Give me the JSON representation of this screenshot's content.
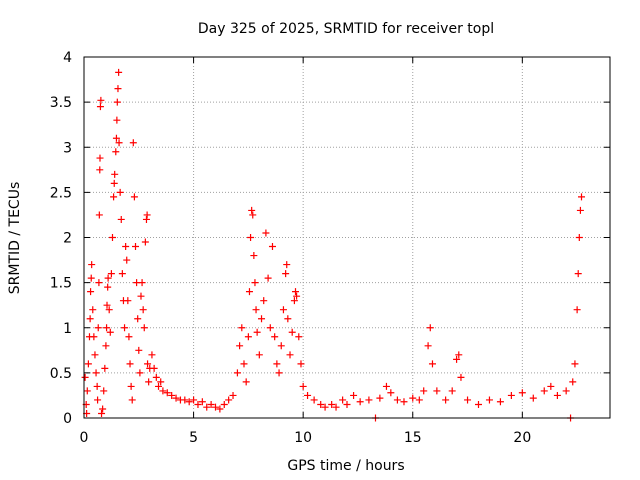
{
  "chart_data": {
    "type": "scatter",
    "title": "Day 325 of 2025, SRMTID for receiver topl",
    "xlabel": "GPS time / hours",
    "ylabel": "SRMTID / TECUs",
    "xlim": [
      0,
      24
    ],
    "ylim": [
      0,
      4
    ],
    "xticks": [
      0,
      5,
      10,
      15,
      20
    ],
    "xtick_labels": [
      "0",
      "5",
      "10",
      "15",
      "20"
    ],
    "yticks": [
      0,
      0.5,
      1,
      1.5,
      2,
      2.5,
      3,
      3.5,
      4
    ],
    "ytick_labels": [
      "0",
      "0.5",
      "1",
      "1.5",
      "2",
      "2.5",
      "3",
      "3.5",
      "4"
    ],
    "grid": true,
    "legend": "none",
    "marker": "+",
    "series": [
      {
        "name": "SRMTID",
        "color": "#ff0000",
        "points": [
          [
            0.05,
            0.45
          ],
          [
            0.1,
            0.15
          ],
          [
            0.12,
            0.05
          ],
          [
            0.15,
            0.3
          ],
          [
            0.2,
            0.6
          ],
          [
            0.25,
            0.9
          ],
          [
            0.28,
            1.1
          ],
          [
            0.3,
            1.4
          ],
          [
            0.33,
            1.55
          ],
          [
            0.35,
            1.7
          ],
          [
            0.4,
            1.2
          ],
          [
            0.45,
            0.9
          ],
          [
            0.5,
            0.7
          ],
          [
            0.55,
            0.5
          ],
          [
            0.6,
            0.35
          ],
          [
            0.62,
            0.2
          ],
          [
            0.65,
            1.0
          ],
          [
            0.68,
            1.5
          ],
          [
            0.7,
            2.25
          ],
          [
            0.72,
            2.75
          ],
          [
            0.73,
            2.88
          ],
          [
            0.75,
            3.45
          ],
          [
            0.77,
            3.52
          ],
          [
            0.8,
            0.05
          ],
          [
            0.85,
            0.1
          ],
          [
            0.9,
            0.3
          ],
          [
            0.95,
            0.55
          ],
          [
            1.0,
            0.8
          ],
          [
            1.03,
            1.0
          ],
          [
            1.05,
            1.25
          ],
          [
            1.08,
            1.45
          ],
          [
            1.1,
            1.55
          ],
          [
            1.15,
            1.2
          ],
          [
            1.2,
            0.95
          ],
          [
            1.25,
            1.6
          ],
          [
            1.3,
            2.0
          ],
          [
            1.35,
            2.45
          ],
          [
            1.38,
            2.6
          ],
          [
            1.4,
            2.7
          ],
          [
            1.45,
            2.95
          ],
          [
            1.48,
            3.1
          ],
          [
            1.5,
            3.3
          ],
          [
            1.52,
            3.5
          ],
          [
            1.55,
            3.65
          ],
          [
            1.58,
            3.83
          ],
          [
            1.6,
            3.05
          ],
          [
            1.65,
            2.5
          ],
          [
            1.7,
            2.2
          ],
          [
            1.75,
            1.6
          ],
          [
            1.8,
            1.3
          ],
          [
            1.85,
            1.0
          ],
          [
            1.9,
            1.9
          ],
          [
            1.95,
            1.75
          ],
          [
            2.0,
            1.3
          ],
          [
            2.05,
            0.9
          ],
          [
            2.1,
            0.6
          ],
          [
            2.15,
            0.35
          ],
          [
            2.2,
            0.2
          ],
          [
            2.25,
            3.05
          ],
          [
            2.3,
            2.45
          ],
          [
            2.35,
            1.9
          ],
          [
            2.4,
            1.5
          ],
          [
            2.45,
            1.1
          ],
          [
            2.5,
            0.75
          ],
          [
            2.55,
            0.5
          ],
          [
            2.6,
            1.35
          ],
          [
            2.65,
            1.5
          ],
          [
            2.7,
            1.2
          ],
          [
            2.75,
            1.0
          ],
          [
            2.8,
            1.95
          ],
          [
            2.85,
            2.2
          ],
          [
            2.88,
            2.25
          ],
          [
            2.9,
            0.6
          ],
          [
            2.95,
            0.4
          ],
          [
            3.0,
            0.55
          ],
          [
            3.1,
            0.7
          ],
          [
            3.2,
            0.55
          ],
          [
            3.3,
            0.45
          ],
          [
            3.4,
            0.35
          ],
          [
            3.5,
            0.4
          ],
          [
            3.6,
            0.3
          ],
          [
            3.8,
            0.28
          ],
          [
            4.0,
            0.25
          ],
          [
            4.2,
            0.22
          ],
          [
            4.4,
            0.2
          ],
          [
            4.6,
            0.2
          ],
          [
            4.8,
            0.18
          ],
          [
            5.0,
            0.2
          ],
          [
            5.2,
            0.15
          ],
          [
            5.4,
            0.18
          ],
          [
            5.6,
            0.12
          ],
          [
            5.8,
            0.15
          ],
          [
            6.0,
            0.12
          ],
          [
            6.2,
            0.1
          ],
          [
            6.4,
            0.15
          ],
          [
            6.6,
            0.2
          ],
          [
            6.8,
            0.25
          ],
          [
            7.0,
            0.5
          ],
          [
            7.1,
            0.8
          ],
          [
            7.2,
            1.0
          ],
          [
            7.3,
            0.6
          ],
          [
            7.4,
            0.4
          ],
          [
            7.5,
            0.9
          ],
          [
            7.55,
            1.4
          ],
          [
            7.6,
            2.0
          ],
          [
            7.65,
            2.3
          ],
          [
            7.7,
            2.25
          ],
          [
            7.75,
            1.8
          ],
          [
            7.8,
            1.5
          ],
          [
            7.85,
            1.2
          ],
          [
            7.9,
            0.95
          ],
          [
            8.0,
            0.7
          ],
          [
            8.1,
            1.1
          ],
          [
            8.2,
            1.3
          ],
          [
            8.3,
            2.05
          ],
          [
            8.4,
            1.55
          ],
          [
            8.5,
            1.0
          ],
          [
            8.6,
            1.9
          ],
          [
            8.7,
            0.9
          ],
          [
            8.8,
            0.6
          ],
          [
            8.9,
            0.5
          ],
          [
            9.0,
            0.8
          ],
          [
            9.1,
            1.2
          ],
          [
            9.2,
            1.6
          ],
          [
            9.25,
            1.7
          ],
          [
            9.3,
            1.1
          ],
          [
            9.4,
            0.7
          ],
          [
            9.5,
            0.95
          ],
          [
            9.6,
            1.3
          ],
          [
            9.65,
            1.4
          ],
          [
            9.7,
            1.35
          ],
          [
            9.8,
            0.9
          ],
          [
            9.9,
            0.6
          ],
          [
            10.0,
            0.35
          ],
          [
            10.2,
            0.25
          ],
          [
            10.5,
            0.2
          ],
          [
            10.8,
            0.15
          ],
          [
            11.0,
            0.12
          ],
          [
            11.3,
            0.15
          ],
          [
            11.5,
            0.12
          ],
          [
            11.8,
            0.2
          ],
          [
            12.0,
            0.15
          ],
          [
            12.3,
            0.25
          ],
          [
            12.6,
            0.18
          ],
          [
            13.0,
            0.2
          ],
          [
            13.3,
            0.0
          ],
          [
            13.5,
            0.22
          ],
          [
            13.8,
            0.35
          ],
          [
            14.0,
            0.28
          ],
          [
            14.3,
            0.2
          ],
          [
            14.6,
            0.18
          ],
          [
            15.0,
            0.22
          ],
          [
            15.3,
            0.2
          ],
          [
            15.5,
            0.3
          ],
          [
            15.7,
            0.8
          ],
          [
            15.8,
            1.0
          ],
          [
            15.9,
            0.6
          ],
          [
            16.1,
            0.3
          ],
          [
            16.5,
            0.2
          ],
          [
            16.8,
            0.3
          ],
          [
            17.0,
            0.65
          ],
          [
            17.1,
            0.7
          ],
          [
            17.2,
            0.45
          ],
          [
            17.5,
            0.2
          ],
          [
            18.0,
            0.15
          ],
          [
            18.5,
            0.2
          ],
          [
            19.0,
            0.18
          ],
          [
            19.5,
            0.25
          ],
          [
            20.0,
            0.28
          ],
          [
            20.5,
            0.22
          ],
          [
            21.0,
            0.3
          ],
          [
            21.3,
            0.35
          ],
          [
            21.6,
            0.25
          ],
          [
            22.0,
            0.3
          ],
          [
            22.2,
            0.0
          ],
          [
            22.3,
            0.4
          ],
          [
            22.4,
            0.6
          ],
          [
            22.5,
            1.2
          ],
          [
            22.55,
            1.6
          ],
          [
            22.6,
            2.0
          ],
          [
            22.65,
            2.3
          ],
          [
            22.7,
            2.45
          ]
        ]
      }
    ]
  }
}
